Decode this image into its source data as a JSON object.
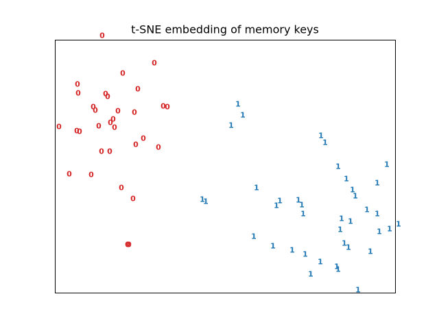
{
  "chart_data": {
    "type": "scatter",
    "title": "t-SNE embedding of memory keys",
    "xlabel": "",
    "ylabel": "",
    "ticks": false,
    "grid": false,
    "legend": false,
    "xlim": [
      0,
      496
    ],
    "ylim": [
      0,
      370
    ],
    "series": [
      {
        "label": "0",
        "color": "#d62728",
        "points": [
          [
            68,
            376
          ],
          [
            144,
            336
          ],
          [
            98,
            321
          ],
          [
            32,
            305
          ],
          [
            120,
            298
          ],
          [
            33,
            292
          ],
          [
            73,
            291
          ],
          [
            76,
            287
          ],
          [
            157,
            273
          ],
          [
            55,
            272
          ],
          [
            163,
            272
          ],
          [
            58,
            267
          ],
          [
            91,
            266
          ],
          [
            115,
            264
          ],
          [
            84,
            254
          ],
          [
            80,
            249
          ],
          [
            63,
            244
          ],
          [
            86,
            242
          ],
          [
            5,
            243
          ],
          [
            31,
            237
          ],
          [
            35,
            236
          ],
          [
            128,
            226
          ],
          [
            117,
            217
          ],
          [
            150,
            213
          ],
          [
            67,
            207
          ],
          [
            79,
            207
          ],
          [
            20,
            174
          ],
          [
            52,
            173
          ],
          [
            96,
            154
          ],
          [
            113,
            138
          ],
          [
            105,
            71
          ],
          [
            107,
            71
          ]
        ]
      },
      {
        "label": "1",
        "color": "#1f77b4",
        "points": [
          [
            266,
            276
          ],
          [
            273,
            260
          ],
          [
            256,
            245
          ],
          [
            387,
            230
          ],
          [
            393,
            220
          ],
          [
            412,
            185
          ],
          [
            483,
            188
          ],
          [
            424,
            167
          ],
          [
            469,
            161
          ],
          [
            293,
            154
          ],
          [
            433,
            151
          ],
          [
            437,
            142
          ],
          [
            214,
            137
          ],
          [
            219,
            134
          ],
          [
            327,
            135
          ],
          [
            354,
            136
          ],
          [
            322,
            128
          ],
          [
            359,
            129
          ],
          [
            454,
            122
          ],
          [
            469,
            116
          ],
          [
            361,
            116
          ],
          [
            417,
            109
          ],
          [
            430,
            105
          ],
          [
            415,
            93
          ],
          [
            500,
            101
          ],
          [
            487,
            94
          ],
          [
            472,
            90
          ],
          [
            289,
            83
          ],
          [
            421,
            73
          ],
          [
            427,
            67
          ],
          [
            317,
            69
          ],
          [
            345,
            63
          ],
          [
            459,
            61
          ],
          [
            364,
            57
          ],
          [
            386,
            46
          ],
          [
            410,
            39
          ],
          [
            412,
            35
          ],
          [
            372,
            28
          ],
          [
            441,
            5
          ]
        ]
      }
    ]
  }
}
